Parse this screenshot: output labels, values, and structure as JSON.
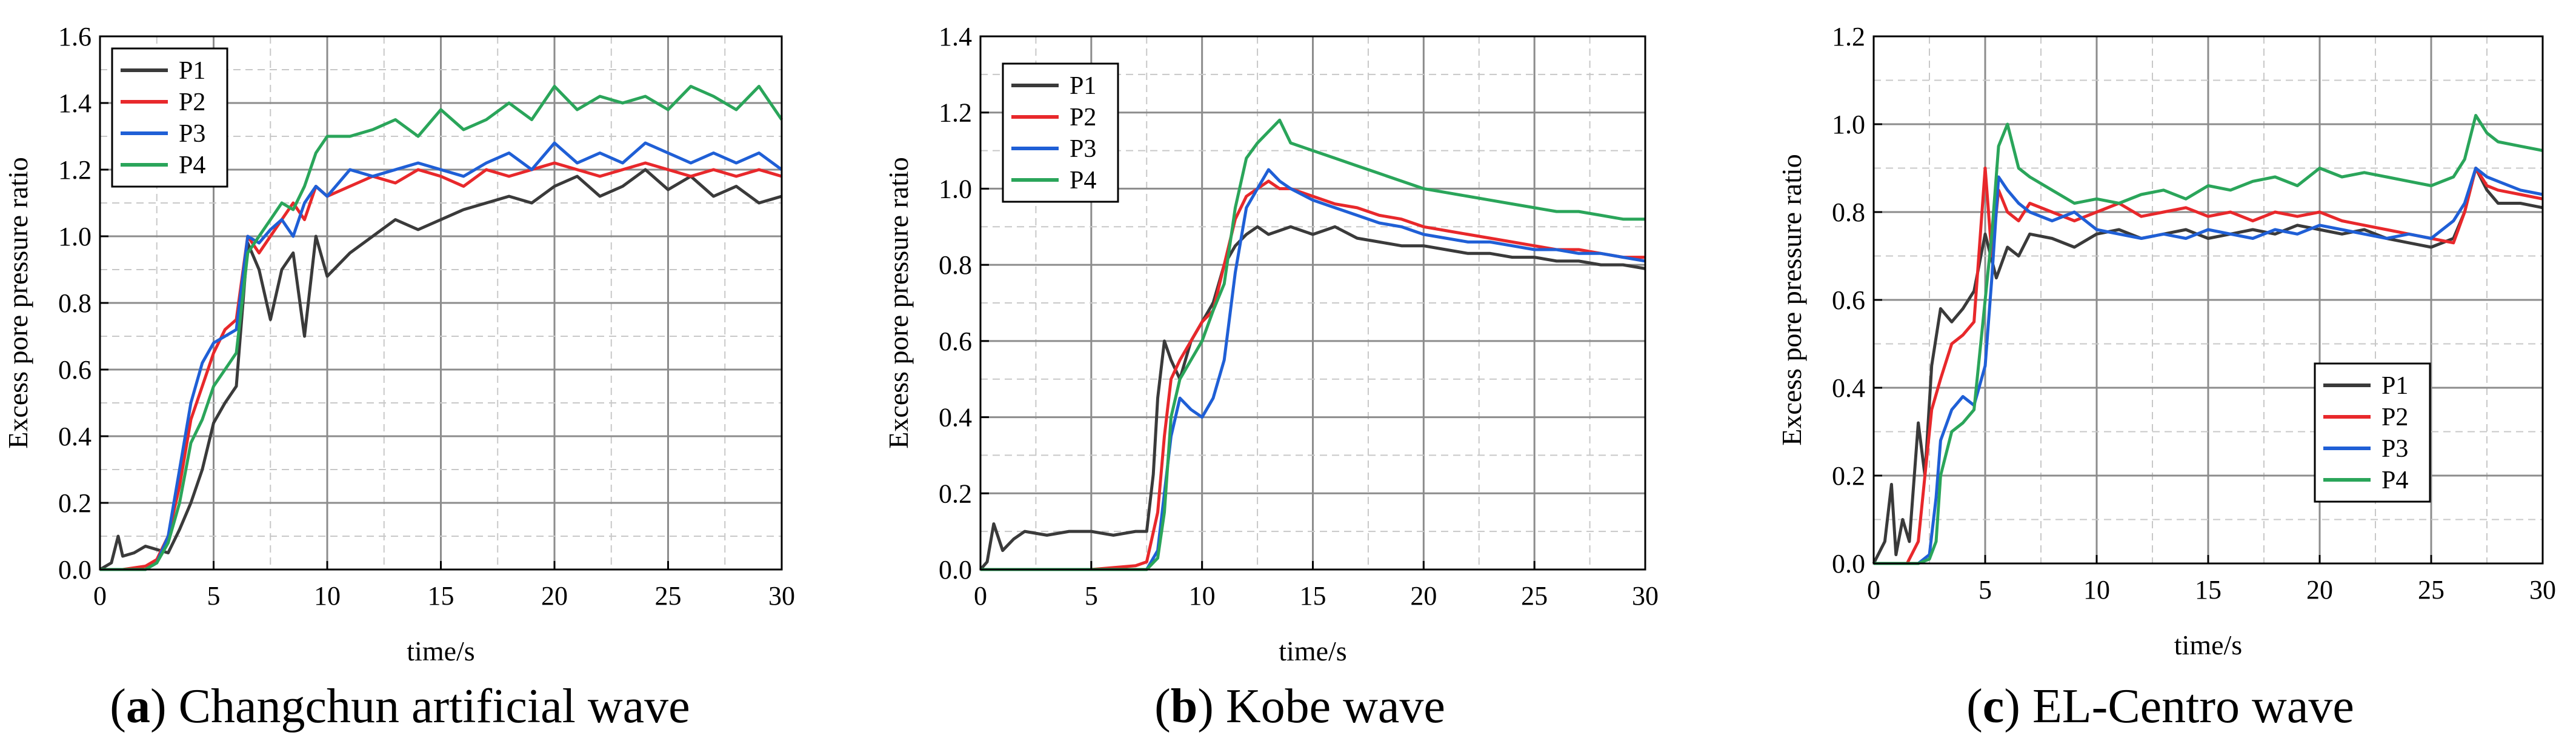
{
  "colors": {
    "P1": "#3a3a3a",
    "P2": "#e8282b",
    "P3": "#1f5fd6",
    "P4": "#2aa55a"
  },
  "chart_data": [
    {
      "type": "line",
      "caption_letter": "a",
      "caption_text": "Changchun artificial wave",
      "xlabel": "time/s",
      "ylabel": "Excess pore pressure ratio",
      "xlim": [
        0,
        30
      ],
      "ylim": [
        0,
        1.6
      ],
      "xticks": [
        "0",
        "5",
        "10",
        "15",
        "20",
        "25",
        "30"
      ],
      "yticks": [
        "0.0",
        "0.2",
        "0.4",
        "0.6",
        "0.8",
        "1.0",
        "1.2",
        "1.4",
        "1.6"
      ],
      "legend": [
        "P1",
        "P2",
        "P3",
        "P4"
      ],
      "legend_position": "top-left",
      "grid": true,
      "series": [
        {
          "name": "P1",
          "x": [
            0,
            0.5,
            0.8,
            1.0,
            1.5,
            2,
            2.5,
            3,
            3.5,
            4,
            4.5,
            5,
            5.5,
            6,
            6.5,
            7,
            7.5,
            8,
            8.5,
            9,
            9.5,
            10,
            11,
            12,
            13,
            14,
            15,
            16,
            17,
            18,
            19,
            20,
            21,
            22,
            23,
            24,
            25,
            26,
            27,
            28,
            29,
            30
          ],
          "y": [
            0,
            0.02,
            0.1,
            0.04,
            0.05,
            0.07,
            0.06,
            0.05,
            0.12,
            0.2,
            0.3,
            0.44,
            0.5,
            0.55,
            0.98,
            0.9,
            0.75,
            0.9,
            0.95,
            0.7,
            1.0,
            0.88,
            0.95,
            1.0,
            1.05,
            1.02,
            1.05,
            1.08,
            1.1,
            1.12,
            1.1,
            1.15,
            1.18,
            1.12,
            1.15,
            1.2,
            1.14,
            1.18,
            1.12,
            1.15,
            1.1,
            1.12
          ]
        },
        {
          "name": "P2",
          "x": [
            0,
            1,
            2,
            2.5,
            3,
            3.5,
            4,
            4.5,
            5,
            5.5,
            6,
            6.5,
            7,
            7.5,
            8,
            8.5,
            9,
            9.5,
            10,
            11,
            12,
            13,
            14,
            15,
            16,
            17,
            18,
            19,
            20,
            21,
            22,
            23,
            24,
            25,
            26,
            27,
            28,
            29,
            30
          ],
          "y": [
            0,
            0,
            0.01,
            0.03,
            0.1,
            0.25,
            0.45,
            0.55,
            0.65,
            0.72,
            0.75,
            1.0,
            0.95,
            1.0,
            1.05,
            1.1,
            1.05,
            1.15,
            1.12,
            1.15,
            1.18,
            1.16,
            1.2,
            1.18,
            1.15,
            1.2,
            1.18,
            1.2,
            1.22,
            1.2,
            1.18,
            1.2,
            1.22,
            1.2,
            1.18,
            1.2,
            1.18,
            1.2,
            1.18
          ]
        },
        {
          "name": "P3",
          "x": [
            0,
            1,
            2,
            2.5,
            3,
            3.5,
            4,
            4.5,
            5,
            5.5,
            6,
            6.5,
            7,
            7.5,
            8,
            8.5,
            9,
            9.5,
            10,
            11,
            12,
            13,
            14,
            15,
            16,
            17,
            18,
            19,
            20,
            21,
            22,
            23,
            24,
            25,
            26,
            27,
            28,
            29,
            30
          ],
          "y": [
            0,
            0,
            0,
            0.02,
            0.1,
            0.3,
            0.5,
            0.62,
            0.68,
            0.7,
            0.72,
            1.0,
            0.98,
            1.02,
            1.05,
            1.0,
            1.1,
            1.15,
            1.12,
            1.2,
            1.18,
            1.2,
            1.22,
            1.2,
            1.18,
            1.22,
            1.25,
            1.2,
            1.28,
            1.22,
            1.25,
            1.22,
            1.28,
            1.25,
            1.22,
            1.25,
            1.22,
            1.25,
            1.2
          ]
        },
        {
          "name": "P4",
          "x": [
            0,
            1,
            2,
            2.5,
            3,
            3.5,
            4,
            4.5,
            5,
            5.5,
            6,
            6.5,
            7,
            7.5,
            8,
            8.5,
            9,
            9.5,
            10,
            11,
            12,
            13,
            14,
            15,
            16,
            17,
            18,
            19,
            20,
            21,
            22,
            23,
            24,
            25,
            26,
            27,
            28,
            29,
            30
          ],
          "y": [
            0,
            0,
            0,
            0.02,
            0.08,
            0.2,
            0.38,
            0.45,
            0.55,
            0.6,
            0.65,
            0.95,
            1.0,
            1.05,
            1.1,
            1.08,
            1.15,
            1.25,
            1.3,
            1.3,
            1.32,
            1.35,
            1.3,
            1.38,
            1.32,
            1.35,
            1.4,
            1.35,
            1.45,
            1.38,
            1.42,
            1.4,
            1.42,
            1.38,
            1.45,
            1.42,
            1.38,
            1.45,
            1.35
          ]
        }
      ]
    },
    {
      "type": "line",
      "caption_letter": "b",
      "caption_text": "Kobe wave",
      "xlabel": "time/s",
      "ylabel": "Excess pore pressure ratio",
      "xlim": [
        0,
        30
      ],
      "ylim": [
        0,
        1.4
      ],
      "xticks": [
        "0",
        "5",
        "10",
        "15",
        "20",
        "25",
        "30"
      ],
      "yticks": [
        "0.0",
        "0.2",
        "0.4",
        "0.6",
        "0.8",
        "1.0",
        "1.2",
        "1.4"
      ],
      "legend": [
        "P1",
        "P2",
        "P3",
        "P4"
      ],
      "legend_position": "top-left",
      "grid": true,
      "series": [
        {
          "name": "P1",
          "x": [
            0,
            0.3,
            0.6,
            1,
            1.5,
            2,
            3,
            4,
            5,
            6,
            7,
            7.5,
            7.8,
            8,
            8.3,
            8.6,
            9,
            9.5,
            10,
            10.5,
            11,
            11.5,
            12,
            12.5,
            13,
            14,
            15,
            16,
            17,
            18,
            19,
            20,
            21,
            22,
            23,
            24,
            25,
            26,
            27,
            28,
            29,
            30
          ],
          "y": [
            0,
            0.02,
            0.12,
            0.05,
            0.08,
            0.1,
            0.09,
            0.1,
            0.1,
            0.09,
            0.1,
            0.1,
            0.25,
            0.45,
            0.6,
            0.55,
            0.5,
            0.6,
            0.65,
            0.7,
            0.8,
            0.85,
            0.88,
            0.9,
            0.88,
            0.9,
            0.88,
            0.9,
            0.87,
            0.86,
            0.85,
            0.85,
            0.84,
            0.83,
            0.83,
            0.82,
            0.82,
            0.81,
            0.81,
            0.8,
            0.8,
            0.79
          ]
        },
        {
          "name": "P2",
          "x": [
            0,
            5,
            7,
            7.5,
            8,
            8.3,
            8.6,
            9,
            9.5,
            10,
            10.5,
            11,
            11.5,
            12,
            12.5,
            13,
            13.5,
            14,
            15,
            16,
            17,
            18,
            19,
            20,
            21,
            22,
            23,
            24,
            25,
            26,
            27,
            28,
            29,
            30
          ],
          "y": [
            0,
            0,
            0.01,
            0.02,
            0.15,
            0.35,
            0.5,
            0.55,
            0.6,
            0.65,
            0.68,
            0.8,
            0.92,
            0.98,
            1.0,
            1.02,
            1.0,
            1.0,
            0.98,
            0.96,
            0.95,
            0.93,
            0.92,
            0.9,
            0.89,
            0.88,
            0.87,
            0.86,
            0.85,
            0.84,
            0.84,
            0.83,
            0.82,
            0.82
          ]
        },
        {
          "name": "P3",
          "x": [
            0,
            5,
            7,
            7.5,
            8,
            8.3,
            8.6,
            9,
            9.5,
            10,
            10.5,
            11,
            11.5,
            12,
            12.5,
            13,
            13.5,
            14,
            15,
            16,
            17,
            18,
            19,
            20,
            21,
            22,
            23,
            24,
            25,
            26,
            27,
            28,
            29,
            30
          ],
          "y": [
            0,
            0,
            0,
            0,
            0.05,
            0.2,
            0.35,
            0.45,
            0.42,
            0.4,
            0.45,
            0.55,
            0.78,
            0.95,
            1.0,
            1.05,
            1.02,
            1.0,
            0.97,
            0.95,
            0.93,
            0.91,
            0.9,
            0.88,
            0.87,
            0.86,
            0.86,
            0.85,
            0.84,
            0.84,
            0.83,
            0.83,
            0.82,
            0.81
          ]
        },
        {
          "name": "P4",
          "x": [
            0,
            5,
            7,
            7.5,
            8,
            8.3,
            8.6,
            9,
            9.5,
            10,
            10.5,
            11,
            11.5,
            12,
            12.5,
            13,
            13.5,
            14,
            15,
            16,
            17,
            18,
            19,
            20,
            21,
            22,
            23,
            24,
            25,
            26,
            27,
            28,
            29,
            30
          ],
          "y": [
            0,
            0,
            0,
            0,
            0.03,
            0.15,
            0.4,
            0.5,
            0.55,
            0.6,
            0.68,
            0.75,
            0.95,
            1.08,
            1.12,
            1.15,
            1.18,
            1.12,
            1.1,
            1.08,
            1.06,
            1.04,
            1.02,
            1.0,
            0.99,
            0.98,
            0.97,
            0.96,
            0.95,
            0.94,
            0.94,
            0.93,
            0.92,
            0.92
          ]
        }
      ]
    },
    {
      "type": "line",
      "caption_letter": "c",
      "caption_text": "EL-Centro wave",
      "xlabel": "time/s",
      "ylabel": "Excess pore pressure ratio",
      "xlim": [
        0,
        30
      ],
      "ylim": [
        0,
        1.2
      ],
      "xticks": [
        "0",
        "5",
        "10",
        "15",
        "20",
        "25",
        "30"
      ],
      "yticks": [
        "0.0",
        "0.2",
        "0.4",
        "0.6",
        "0.8",
        "1.0",
        "1.2"
      ],
      "legend": [
        "P1",
        "P2",
        "P3",
        "P4"
      ],
      "legend_position": "lower-right",
      "grid": true,
      "series": [
        {
          "name": "P1",
          "x": [
            0,
            0.5,
            0.8,
            1.0,
            1.3,
            1.6,
            2,
            2.3,
            2.6,
            3,
            3.5,
            4,
            4.5,
            5,
            5.5,
            6,
            6.5,
            7,
            8,
            9,
            10,
            11,
            12,
            13,
            14,
            15,
            16,
            17,
            18,
            19,
            20,
            21,
            22,
            23,
            24,
            25,
            26,
            26.5,
            27,
            27.5,
            28,
            29,
            30
          ],
          "y": [
            0,
            0.05,
            0.18,
            0.02,
            0.1,
            0.05,
            0.32,
            0.2,
            0.45,
            0.58,
            0.55,
            0.58,
            0.62,
            0.75,
            0.65,
            0.72,
            0.7,
            0.75,
            0.74,
            0.72,
            0.75,
            0.76,
            0.74,
            0.75,
            0.76,
            0.74,
            0.75,
            0.76,
            0.75,
            0.77,
            0.76,
            0.75,
            0.76,
            0.74,
            0.73,
            0.72,
            0.74,
            0.8,
            0.9,
            0.85,
            0.82,
            0.82,
            0.81
          ]
        },
        {
          "name": "P2",
          "x": [
            0,
            1.5,
            2,
            2.3,
            2.6,
            3,
            3.5,
            4,
            4.5,
            5,
            5.3,
            5.6,
            6,
            6.5,
            7,
            8,
            9,
            10,
            11,
            12,
            13,
            14,
            15,
            16,
            17,
            18,
            19,
            20,
            21,
            22,
            23,
            24,
            25,
            26,
            26.5,
            27,
            27.5,
            28,
            29,
            30
          ],
          "y": [
            0,
            0,
            0.05,
            0.2,
            0.35,
            0.42,
            0.5,
            0.52,
            0.55,
            0.9,
            0.7,
            0.85,
            0.8,
            0.78,
            0.82,
            0.8,
            0.78,
            0.8,
            0.82,
            0.79,
            0.8,
            0.81,
            0.79,
            0.8,
            0.78,
            0.8,
            0.79,
            0.8,
            0.78,
            0.77,
            0.76,
            0.75,
            0.74,
            0.73,
            0.8,
            0.9,
            0.86,
            0.85,
            0.84,
            0.83
          ]
        },
        {
          "name": "P3",
          "x": [
            0,
            2,
            2.5,
            2.8,
            3,
            3.5,
            4,
            4.5,
            5,
            5.3,
            5.6,
            6,
            6.5,
            7,
            8,
            9,
            10,
            11,
            12,
            13,
            14,
            15,
            16,
            17,
            18,
            19,
            20,
            21,
            22,
            23,
            24,
            25,
            26,
            26.5,
            27,
            27.5,
            28,
            29,
            30
          ],
          "y": [
            0,
            0,
            0.02,
            0.15,
            0.28,
            0.35,
            0.38,
            0.36,
            0.45,
            0.65,
            0.88,
            0.85,
            0.82,
            0.8,
            0.78,
            0.8,
            0.76,
            0.75,
            0.74,
            0.75,
            0.74,
            0.76,
            0.75,
            0.74,
            0.76,
            0.75,
            0.77,
            0.76,
            0.75,
            0.74,
            0.75,
            0.74,
            0.78,
            0.82,
            0.9,
            0.88,
            0.87,
            0.85,
            0.84
          ]
        },
        {
          "name": "P4",
          "x": [
            0,
            2,
            2.5,
            2.8,
            3,
            3.5,
            4,
            4.5,
            5,
            5.3,
            5.6,
            6,
            6.5,
            7,
            8,
            9,
            10,
            11,
            12,
            13,
            14,
            15,
            16,
            17,
            18,
            19,
            20,
            21,
            22,
            23,
            24,
            25,
            26,
            26.5,
            27,
            27.5,
            28,
            29,
            30
          ],
          "y": [
            0,
            0,
            0.01,
            0.05,
            0.2,
            0.3,
            0.32,
            0.35,
            0.6,
            0.75,
            0.95,
            1.0,
            0.9,
            0.88,
            0.85,
            0.82,
            0.83,
            0.82,
            0.84,
            0.85,
            0.83,
            0.86,
            0.85,
            0.87,
            0.88,
            0.86,
            0.9,
            0.88,
            0.89,
            0.88,
            0.87,
            0.86,
            0.88,
            0.92,
            1.02,
            0.98,
            0.96,
            0.95,
            0.94
          ]
        }
      ]
    }
  ]
}
